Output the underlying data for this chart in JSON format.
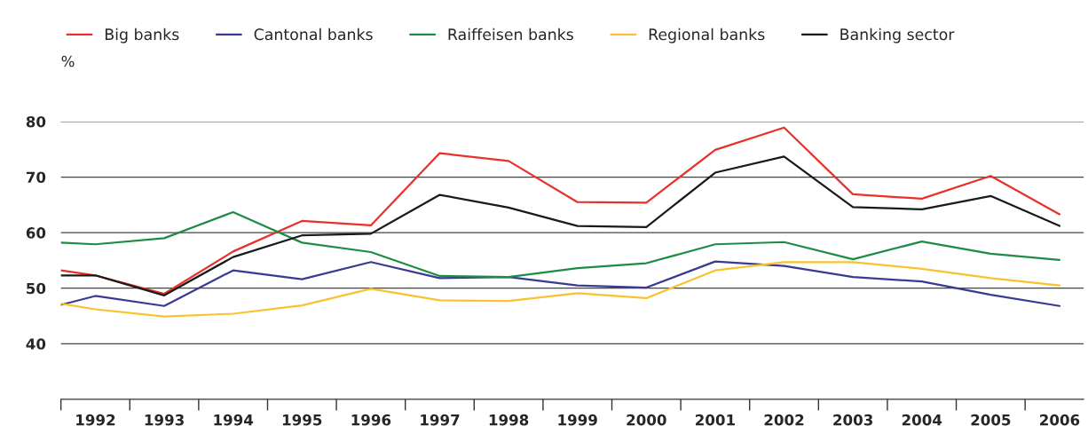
{
  "chart_data": {
    "type": "line",
    "ylabel": "%",
    "x": [
      1991.5,
      1992,
      1993,
      1994,
      1995,
      1996,
      1997,
      1998,
      1999,
      2000,
      2001,
      2002,
      2003,
      2004,
      2005,
      2006
    ],
    "series": [
      {
        "name": "Big banks",
        "color": "#e8312a",
        "values": [
          53.2,
          52.3,
          49.0,
          56.6,
          62.1,
          61.3,
          74.3,
          72.9,
          65.5,
          65.4,
          74.9,
          78.9,
          66.9,
          66.1,
          70.2,
          63.3
        ]
      },
      {
        "name": "Cantonal banks",
        "color": "#3a3a94",
        "values": [
          47.0,
          48.6,
          46.8,
          53.2,
          51.6,
          54.7,
          51.8,
          52.0,
          50.5,
          50.1,
          54.8,
          54.0,
          52.0,
          51.2,
          48.8,
          46.8
        ]
      },
      {
        "name": "Raiffeisen banks",
        "color": "#1e8c45",
        "values": [
          58.2,
          57.9,
          59.0,
          63.7,
          58.2,
          56.5,
          52.2,
          52.0,
          53.6,
          54.5,
          57.9,
          58.3,
          55.2,
          58.4,
          56.2,
          55.1
        ]
      },
      {
        "name": "Regional banks",
        "color": "#f9c22e",
        "values": [
          47.2,
          46.2,
          44.9,
          45.4,
          46.9,
          49.9,
          47.8,
          47.7,
          49.1,
          48.2,
          53.2,
          54.7,
          54.7,
          53.5,
          51.8,
          50.5
        ]
      },
      {
        "name": "Banking sector",
        "color": "#1a1a1a",
        "values": [
          52.3,
          52.3,
          48.7,
          55.6,
          59.5,
          59.8,
          66.8,
          64.5,
          61.2,
          61.0,
          70.8,
          73.7,
          64.6,
          64.2,
          66.6,
          61.2
        ]
      }
    ],
    "xlim": [
      1991.5,
      2006.35
    ],
    "ylim": [
      30,
      80
    ],
    "xticks": [
      {
        "value": 1991.5,
        "label": null
      },
      {
        "value": 1992,
        "label": "1992"
      },
      {
        "value": 1992.5,
        "label": null
      },
      {
        "value": 1993,
        "label": "1993"
      },
      {
        "value": 1993.5,
        "label": null
      },
      {
        "value": 1994,
        "label": "1994"
      },
      {
        "value": 1994.5,
        "label": null
      },
      {
        "value": 1995,
        "label": "1995"
      },
      {
        "value": 1995.5,
        "label": null
      },
      {
        "value": 1996,
        "label": "1996"
      },
      {
        "value": 1996.5,
        "label": null
      },
      {
        "value": 1997,
        "label": "1997"
      },
      {
        "value": 1997.5,
        "label": null
      },
      {
        "value": 1998,
        "label": "1998"
      },
      {
        "value": 1998.5,
        "label": null
      },
      {
        "value": 1999,
        "label": "1999"
      },
      {
        "value": 1999.5,
        "label": null
      },
      {
        "value": 2000,
        "label": "2000"
      },
      {
        "value": 2000.5,
        "label": null
      },
      {
        "value": 2001,
        "label": "2001"
      },
      {
        "value": 2001.5,
        "label": null
      },
      {
        "value": 2002,
        "label": "2002"
      },
      {
        "value": 2002.5,
        "label": null
      },
      {
        "value": 2003,
        "label": "2003"
      },
      {
        "value": 2003.5,
        "label": null
      },
      {
        "value": 2004,
        "label": "2004"
      },
      {
        "value": 2004.5,
        "label": null
      },
      {
        "value": 2005,
        "label": "2005"
      },
      {
        "value": 2005.5,
        "label": null
      },
      {
        "value": 2006,
        "label": "2006"
      }
    ],
    "yticks": [
      40,
      50,
      60,
      70,
      80
    ],
    "grid": "y",
    "legend": "top",
    "marker": "none",
    "line_style": "solid"
  }
}
